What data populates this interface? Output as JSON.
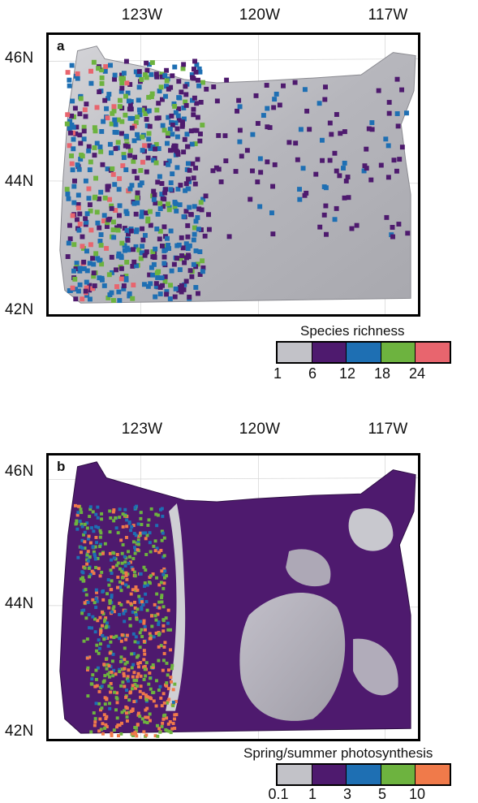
{
  "panel_a": {
    "label": "a",
    "longitudes": [
      "123W",
      "120W",
      "117W"
    ],
    "latitudes": [
      "46N",
      "44N",
      "42N"
    ],
    "legend": {
      "title": "Species richness",
      "colors": [
        "#c2c2c8",
        "#4e1a6e",
        "#1e6fb3",
        "#6db33f",
        "#e8656e"
      ],
      "ticks": [
        "1",
        "6",
        "12",
        "18",
        "24"
      ]
    }
  },
  "panel_b": {
    "label": "b",
    "longitudes": [
      "123W",
      "120W",
      "117W"
    ],
    "latitudes": [
      "46N",
      "44N",
      "42N"
    ],
    "legend": {
      "title": "Spring/summer photosynthesis",
      "colors": [
        "#c2c2c8",
        "#4e1a6e",
        "#1e6fb3",
        "#6db33f",
        "#f07a4a"
      ],
      "ticks": [
        "0.1",
        "1",
        "3",
        "5",
        "10"
      ]
    }
  }
}
